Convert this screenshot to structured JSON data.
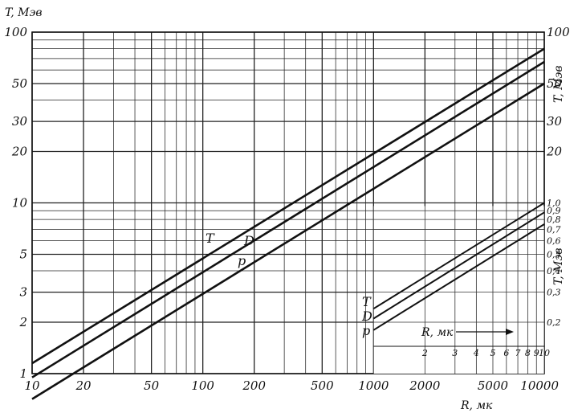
{
  "chart_data": {
    "type": "line",
    "xscale": "log",
    "yscale": "log",
    "xlabel": "R, мк",
    "ylabel": "T, Мэв",
    "right_ylabel_upper": "T, Мэв",
    "right_ylabel_lower": "T, Мэв",
    "xlim": [
      10,
      10000
    ],
    "ylim": [
      1,
      100
    ],
    "grid": true,
    "xticks": [
      "10",
      "20",
      "50",
      "100",
      "200",
      "500",
      "1000",
      "2000",
      "5000",
      "10000"
    ],
    "yticks_left": [
      "1",
      "2",
      "3",
      "5",
      "10",
      "20",
      "30",
      "50",
      "100"
    ],
    "yticks_right_upper": [
      "20",
      "30",
      "50",
      "100"
    ],
    "series": [
      {
        "name": "T",
        "x": [
          10,
          10000
        ],
        "y": [
          1.15,
          80
        ]
      },
      {
        "name": "D",
        "x": [
          10,
          10000
        ],
        "y": [
          0.95,
          67
        ]
      },
      {
        "name": "p",
        "x": [
          10,
          10000
        ],
        "y": [
          0.71,
          50
        ]
      }
    ],
    "inset": {
      "x_label": "R, мк",
      "y_label": "T, Мэв",
      "xlim": [
        1,
        10
      ],
      "ylim": [
        0.1,
        1.0
      ],
      "xticks": [
        "2",
        "3",
        "4",
        "5",
        "6",
        "7",
        "8",
        "9",
        "10"
      ],
      "yticks": [
        "0,2",
        "0,3",
        "0,4",
        "0,5",
        "0,6",
        "0,7",
        "0,8",
        "0,9",
        "1,0"
      ],
      "series": [
        {
          "name": "T",
          "x": [
            1,
            10
          ],
          "y": [
            0.24,
            1.0
          ]
        },
        {
          "name": "D",
          "x": [
            1,
            10
          ],
          "y": [
            0.21,
            0.88
          ]
        },
        {
          "name": "p",
          "x": [
            1,
            10
          ],
          "y": [
            0.18,
            0.75
          ]
        }
      ]
    }
  }
}
